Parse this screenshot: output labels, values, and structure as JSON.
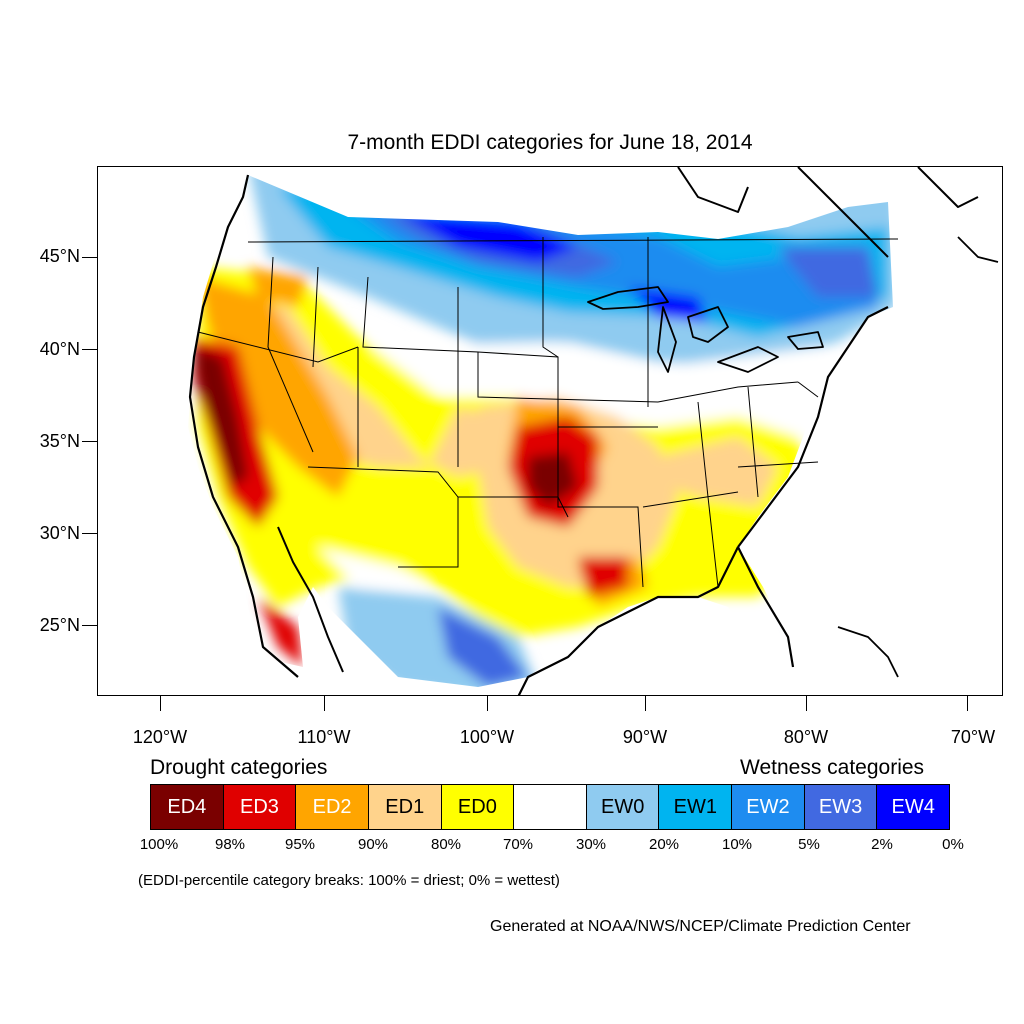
{
  "title": "7-month EDDI categories for June 18, 2014",
  "map": {
    "lat_labels": [
      "45°N",
      "40°N",
      "35°N",
      "30°N",
      "25°N"
    ],
    "lon_labels": [
      "120°W",
      "110°W",
      "100°W",
      "90°W",
      "80°W",
      "70°W"
    ]
  },
  "legend": {
    "drought_heading": "Drought categories",
    "wetness_heading": "Wetness categories",
    "categories": [
      {
        "label": "ED4",
        "color": "#7a0000",
        "text_color": "#ffffff"
      },
      {
        "label": "ED3",
        "color": "#e00000",
        "text_color": "#ffffff"
      },
      {
        "label": "ED2",
        "color": "#ffa500",
        "text_color": "#ffffff"
      },
      {
        "label": "ED1",
        "color": "#ffd38c",
        "text_color": "#000000"
      },
      {
        "label": "ED0",
        "color": "#ffff00",
        "text_color": "#000000"
      },
      {
        "label": "",
        "color": "#ffffff",
        "text_color": "#000000"
      },
      {
        "label": "EW0",
        "color": "#8fcbf0",
        "text_color": "#000000"
      },
      {
        "label": "EW1",
        "color": "#00b4f0",
        "text_color": "#000000"
      },
      {
        "label": "EW2",
        "color": "#1e8cf0",
        "text_color": "#ffffff"
      },
      {
        "label": "EW3",
        "color": "#4169e1",
        "text_color": "#ffffff"
      },
      {
        "label": "EW4",
        "color": "#0000ff",
        "text_color": "#ffffff"
      }
    ],
    "breaks": [
      "100%",
      "98%",
      "95%",
      "90%",
      "80%",
      "70%",
      "30%",
      "20%",
      "10%",
      "5%",
      "2%",
      "0%"
    ]
  },
  "note": "(EDDI-percentile category breaks: 100% = driest; 0% = wettest)",
  "credit": "Generated at NOAA/NWS/NCEP/Climate Prediction Center"
}
